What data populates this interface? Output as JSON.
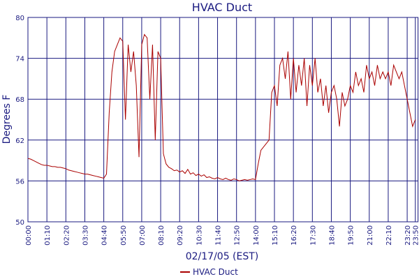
{
  "chart_data": {
    "type": "line",
    "title": "HVAC Duct",
    "x_label": "02/17/05 (EST)",
    "y_label": "Degrees F",
    "xlim": [
      0,
      1440
    ],
    "ylim": [
      50,
      80
    ],
    "xticks": [
      {
        "value": 0,
        "label": "00:00"
      },
      {
        "value": 70,
        "label": "01:10"
      },
      {
        "value": 140,
        "label": "02:20"
      },
      {
        "value": 210,
        "label": "03:30"
      },
      {
        "value": 280,
        "label": "04:40"
      },
      {
        "value": 350,
        "label": "05:50"
      },
      {
        "value": 420,
        "label": "07:00"
      },
      {
        "value": 490,
        "label": "08:10"
      },
      {
        "value": 560,
        "label": "09:20"
      },
      {
        "value": 630,
        "label": "10:30"
      },
      {
        "value": 700,
        "label": "11:40"
      },
      {
        "value": 770,
        "label": "12:50"
      },
      {
        "value": 840,
        "label": "14:00"
      },
      {
        "value": 910,
        "label": "15:10"
      },
      {
        "value": 980,
        "label": "16:20"
      },
      {
        "value": 1050,
        "label": "17:30"
      },
      {
        "value": 1120,
        "label": "18:40"
      },
      {
        "value": 1190,
        "label": "19:50"
      },
      {
        "value": 1260,
        "label": "21:00"
      },
      {
        "value": 1330,
        "label": "22:10"
      },
      {
        "value": 1400,
        "label": "23:20"
      },
      {
        "value": 1430,
        "label": "23:50"
      }
    ],
    "yticks": [
      50,
      56,
      62,
      68,
      74,
      80
    ],
    "grid": true,
    "legend": "bottom",
    "x": [
      0,
      10,
      20,
      30,
      40,
      50,
      60,
      70,
      80,
      90,
      100,
      110,
      120,
      130,
      140,
      150,
      160,
      170,
      180,
      190,
      200,
      210,
      220,
      230,
      240,
      250,
      260,
      270,
      280,
      290,
      300,
      310,
      320,
      330,
      340,
      350,
      360,
      370,
      380,
      390,
      400,
      410,
      420,
      430,
      440,
      450,
      460,
      470,
      480,
      490,
      500,
      510,
      520,
      530,
      540,
      550,
      560,
      570,
      580,
      590,
      600,
      610,
      620,
      630,
      640,
      650,
      660,
      670,
      680,
      690,
      700,
      710,
      720,
      730,
      740,
      750,
      760,
      770,
      780,
      790,
      800,
      810,
      820,
      830,
      840,
      850,
      860,
      870,
      880,
      890,
      900,
      910,
      920,
      930,
      940,
      950,
      960,
      970,
      980,
      990,
      1000,
      1010,
      1020,
      1030,
      1040,
      1050,
      1060,
      1070,
      1080,
      1090,
      1100,
      1110,
      1120,
      1130,
      1140,
      1150,
      1160,
      1170,
      1180,
      1190,
      1200,
      1210,
      1220,
      1230,
      1240,
      1250,
      1260,
      1270,
      1280,
      1290,
      1300,
      1310,
      1320,
      1330,
      1340,
      1350,
      1360,
      1370,
      1380,
      1390,
      1400,
      1410,
      1420,
      1430
    ],
    "series": [
      {
        "name": "HVAC Duct",
        "color": "#aa0000",
        "values": [
          59.3,
          59.2,
          59.0,
          58.8,
          58.6,
          58.4,
          58.3,
          58.3,
          58.2,
          58.1,
          58.1,
          58.0,
          58.0,
          57.9,
          57.8,
          57.6,
          57.5,
          57.4,
          57.3,
          57.2,
          57.1,
          57.0,
          57.0,
          56.9,
          56.8,
          56.7,
          56.6,
          56.5,
          56.4,
          57,
          66,
          72,
          75,
          76,
          77,
          76.5,
          65,
          76,
          72,
          75,
          70,
          59.5,
          76,
          77.5,
          77,
          68,
          76,
          62,
          75,
          74,
          60,
          58.5,
          58,
          57.8,
          57.5,
          57.6,
          57.3,
          57.5,
          57.1,
          57.7,
          57.0,
          57.2,
          56.8,
          57.0,
          56.7,
          56.9,
          56.5,
          56.6,
          56.4,
          56.3,
          56.5,
          56.3,
          56.2,
          56.4,
          56.2,
          56.1,
          56.3,
          56.2,
          56.0,
          56.1,
          56.2,
          56.1,
          56.2,
          56.3,
          56.2,
          58.5,
          60.5,
          61,
          61.5,
          62,
          69,
          70,
          67,
          73,
          74,
          71,
          75,
          68,
          74,
          69,
          73,
          70,
          74,
          67,
          73,
          70,
          74,
          69,
          71,
          67,
          70,
          66,
          69,
          70,
          68,
          64,
          69,
          67,
          68,
          70,
          69,
          72,
          70,
          71,
          69,
          73,
          71,
          72,
          70,
          73,
          71,
          72,
          71,
          72,
          70,
          73,
          72,
          71,
          72,
          70,
          68,
          66,
          64,
          65
        ]
      }
    ]
  }
}
